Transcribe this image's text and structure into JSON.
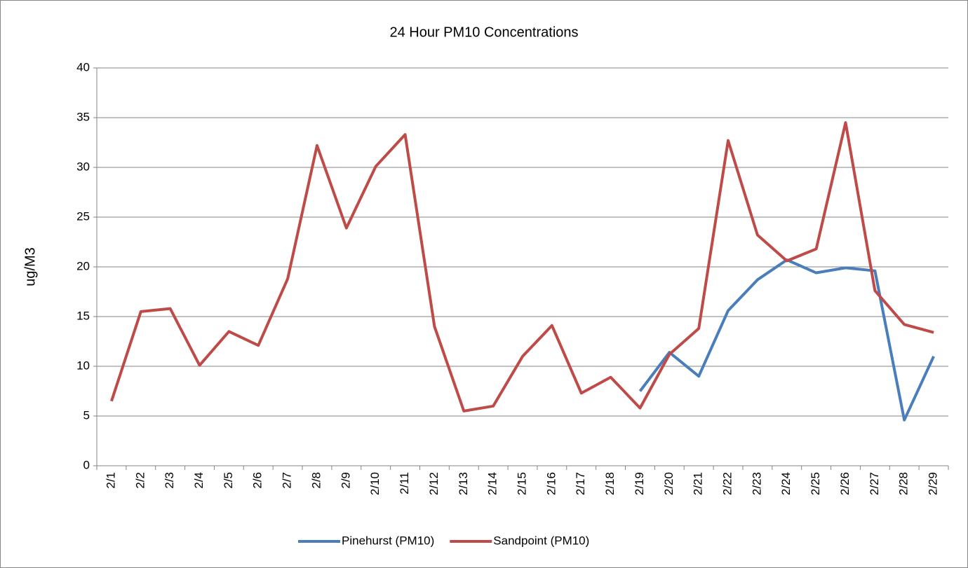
{
  "chart_data": {
    "type": "line",
    "title": "24 Hour PM10 Concentrations",
    "y_label": "ug/M3",
    "categories": [
      "2/1",
      "2/2",
      "2/3",
      "2/4",
      "2/5",
      "2/6",
      "2/7",
      "2/8",
      "2/9",
      "2/10",
      "2/11",
      "2/12",
      "2/13",
      "2/14",
      "2/15",
      "2/16",
      "2/17",
      "2/18",
      "2/19",
      "2/20",
      "2/21",
      "2/22",
      "2/23",
      "2/24",
      "2/25",
      "2/26",
      "2/27",
      "2/28",
      "2/29"
    ],
    "series": [
      {
        "name": "Pinehurst (PM10)",
        "color": "#4a7ebb",
        "values": [
          null,
          null,
          null,
          null,
          null,
          null,
          null,
          null,
          null,
          null,
          null,
          null,
          null,
          null,
          null,
          null,
          null,
          null,
          7.5,
          11.4,
          9.0,
          15.6,
          18.7,
          20.7,
          19.4,
          19.9,
          19.6,
          4.6,
          11.0
        ]
      },
      {
        "name": "Sandpoint (PM10)",
        "color": "#be4b48",
        "values": [
          6.5,
          15.5,
          15.8,
          10.1,
          13.5,
          12.1,
          18.8,
          32.2,
          23.9,
          30.1,
          33.3,
          14.0,
          5.5,
          6.0,
          11.0,
          14.1,
          7.3,
          8.9,
          5.8,
          11.2,
          13.8,
          32.7,
          23.2,
          20.6,
          21.8,
          34.5,
          17.6,
          14.2,
          13.4
        ]
      }
    ],
    "ylim": [
      0,
      40
    ],
    "yticks": [
      0,
      5,
      10,
      15,
      20,
      25,
      30,
      35,
      40
    ],
    "grid": true,
    "legend": "bottom"
  }
}
